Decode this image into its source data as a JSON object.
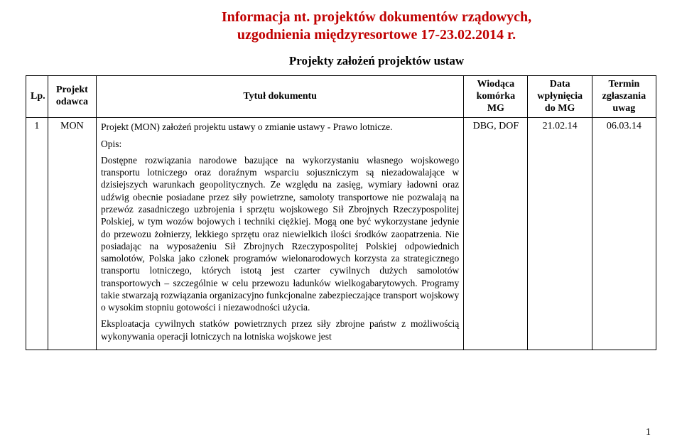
{
  "colors": {
    "title": "#c00000",
    "text": "#000000",
    "border": "#000000",
    "background": "#ffffff"
  },
  "header": {
    "title_line1": "Informacja nt. projektów dokumentów rządowych,",
    "title_line2": "uzgodnienia międzyresortowe 17-23.02.2014 r."
  },
  "section_title": "Projekty założeń projektów ustaw",
  "table": {
    "columns": {
      "lp": "Lp.",
      "odawca_l1": "Projekt",
      "odawca_l2": "odawca",
      "tytul": "Tytuł dokumentu",
      "mg_l1": "Wiodąca",
      "mg_l2": "komórka",
      "mg_l3": "MG",
      "data_l1": "Data",
      "data_l2": "wpłynięcia",
      "data_l3": "do MG",
      "termin_l1": "Termin",
      "termin_l2": "zgłaszania",
      "termin_l3": "uwag"
    },
    "row1": {
      "lp": "1",
      "odawca": "MON",
      "proj_title": "Projekt (MON) założeń projektu ustawy o zmianie ustawy - Prawo lotnicze.",
      "opis_label": "Opis:",
      "para1": "Dostępne rozwiązania narodowe bazujące na wykorzystaniu własnego wojskowego transportu lotniczego oraz doraźnym wsparciu sojuszniczym są niezadowalające w dzisiejszych warunkach geopolitycznych. Ze względu na zasięg, wymiary ładowni oraz udźwig obecnie posiadane przez siły powietrzne, samoloty transportowe nie pozwalają na przewóz zasadniczego uzbrojenia i sprzętu wojskowego Sił Zbrojnych Rzeczypospolitej Polskiej, w tym wozów bojowych i techniki ciężkiej. Mogą one być wykorzystane jedynie do przewozu żołnierzy, lekkiego sprzętu oraz niewielkich ilości środków zaopatrzenia. Nie posiadając na wyposażeniu Sił Zbrojnych Rzeczypospolitej Polskiej odpowiednich samolotów, Polska jako członek programów wielonarodowych korzysta za strategicznego transportu lotniczego, których istotą jest czarter cywilnych dużych samolotów transportowych – szczególnie w celu przewozu ładunków wielkogabarytowych. Programy takie stwarzają rozwiązania organizacyjno funkcjonalne zabezpieczające transport wojskowy o wysokim stopniu gotowości i niezawodności użycia.",
      "para2": "Eksploatacja cywilnych statków powietrznych przez siły zbrojne państw z możliwością wykonywania operacji lotniczych na lotniska wojskowe jest",
      "mg": "DBG, DOF",
      "data": "21.02.14",
      "termin": "06.03.14"
    }
  },
  "page_number": "1"
}
